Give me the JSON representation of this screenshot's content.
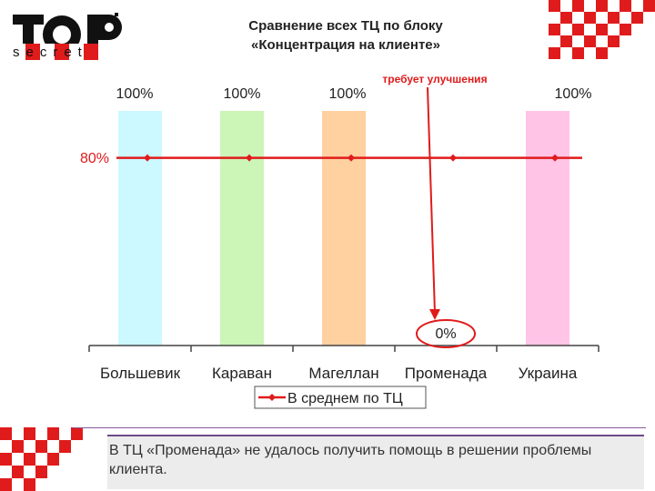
{
  "logo": {
    "top": "TOP",
    "bottom": "secret"
  },
  "title": "Сравнение всех ТЦ по блоку\n«Концентрация на клиенте»",
  "annotation": "требует улучшения",
  "caption": "В ТЦ «Променада» не удалось получить помощь в решении проблемы клиента.",
  "colors": {
    "accent": "#e01b1b",
    "bars": [
      "#ccf8ff",
      "#ccf5b8",
      "#ffd0a0",
      "#d9d9d9",
      "#ffc4e6"
    ]
  },
  "chart_data": {
    "type": "bar",
    "categories": [
      "Большевик",
      "Караван",
      "Магеллан",
      "Променада",
      "Украина"
    ],
    "series": [
      {
        "values": [
          100,
          100,
          100,
          0,
          100
        ]
      },
      {
        "name": "В среднем по ТЦ",
        "values": [
          80,
          80,
          80,
          80,
          80
        ]
      }
    ],
    "bar_labels": [
      "100%",
      "100%",
      "100%",
      "0%",
      "100%"
    ],
    "average_label": "80%",
    "ylim": [
      0,
      100
    ]
  }
}
